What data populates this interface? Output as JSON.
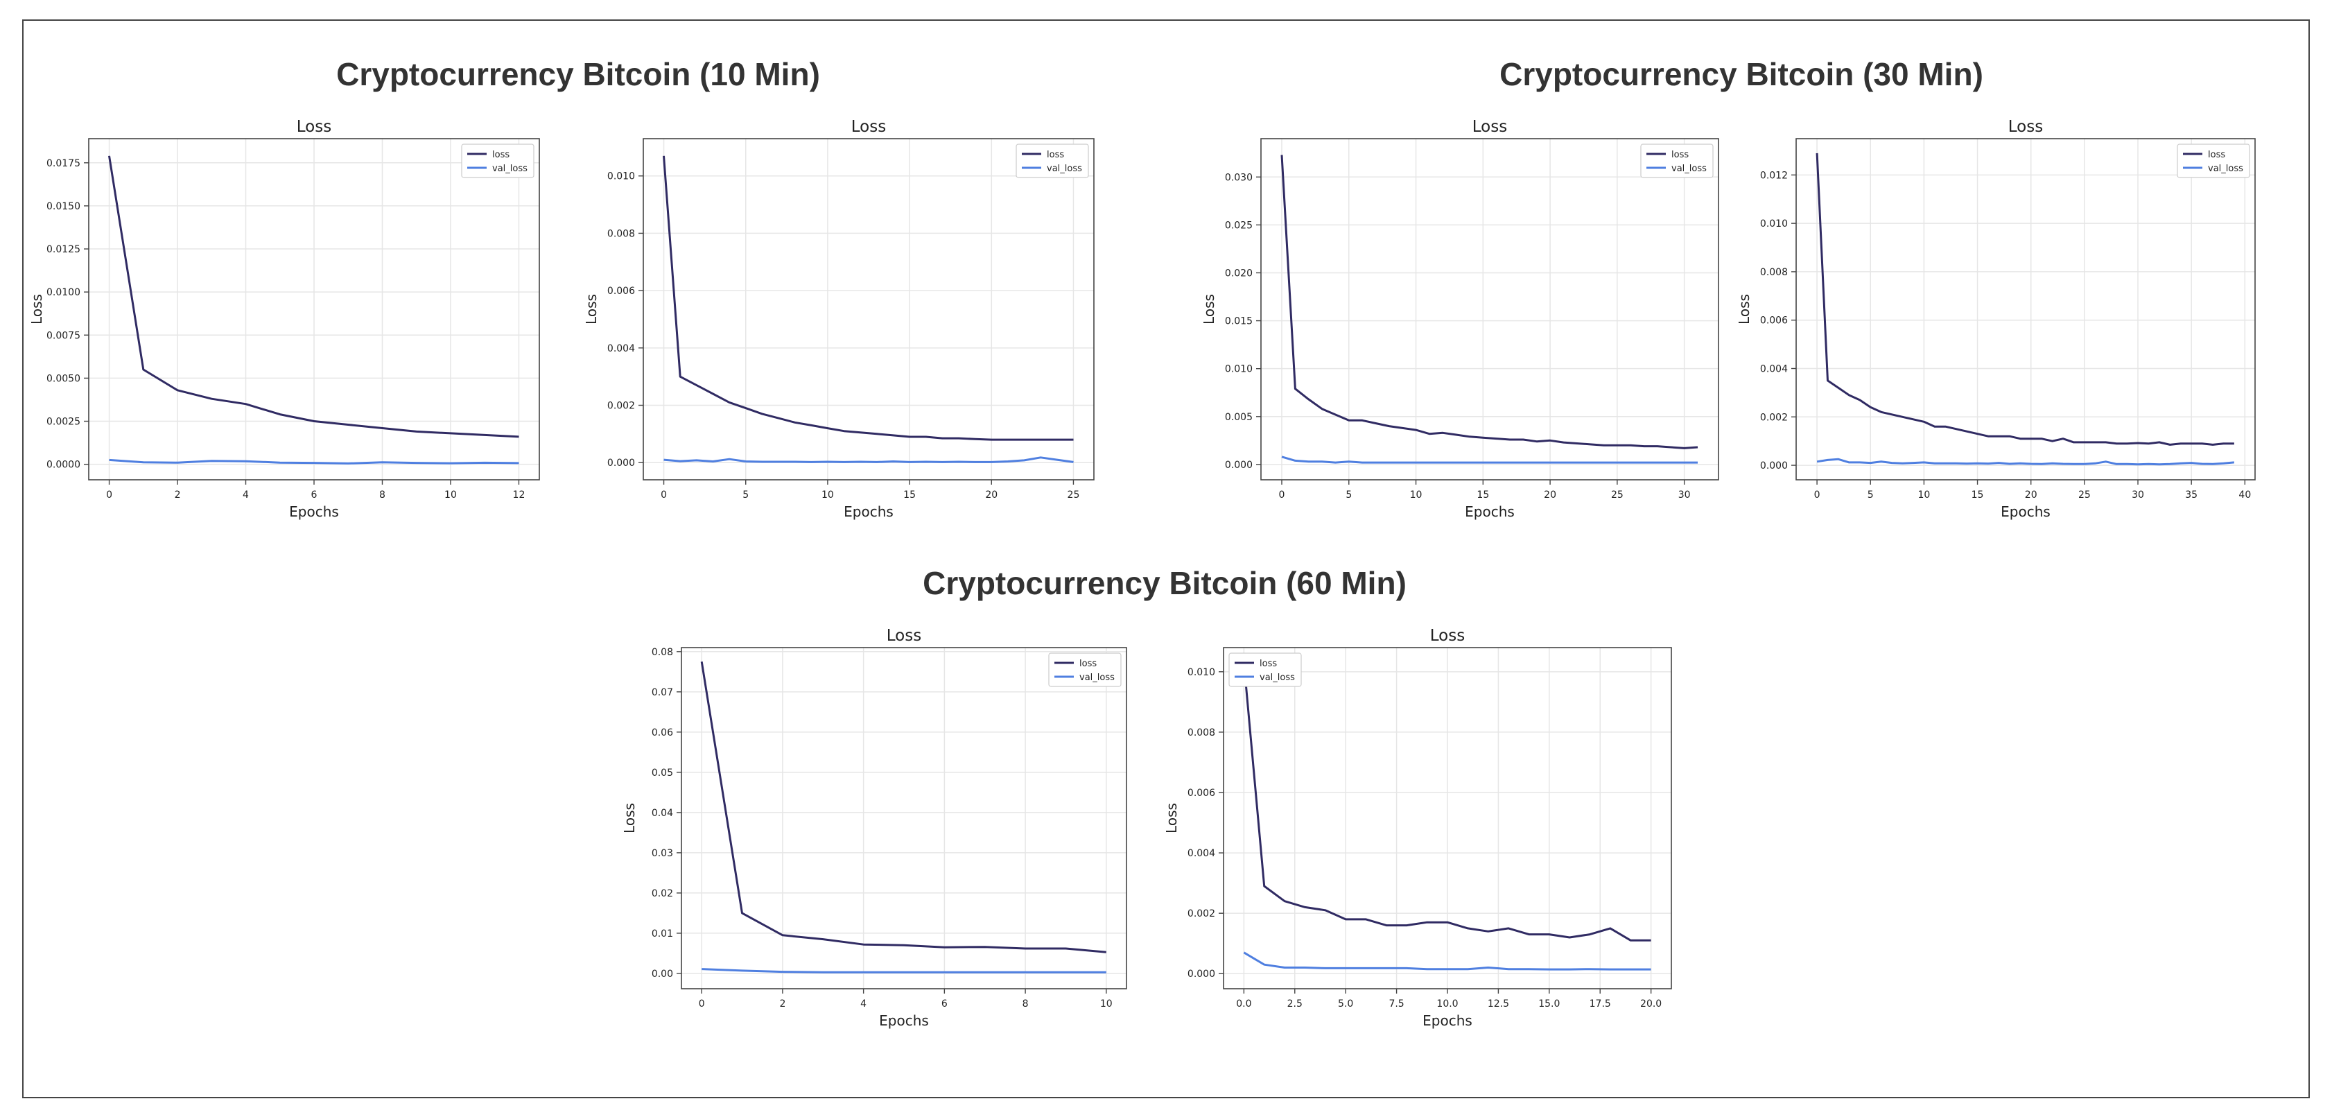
{
  "groups": [
    {
      "title": "Cryptocurrency Bitcoin (10 Min)"
    },
    {
      "title": "Cryptocurrency Bitcoin (30 Min)"
    },
    {
      "title": "Cryptocurrency Bitcoin (60 Min)"
    }
  ],
  "colors": {
    "loss": "#302b63",
    "val_loss": "#4f7fe0",
    "grid": "#e6e6e6",
    "frame": "#444444"
  },
  "chart_data": [
    {
      "type": "line",
      "group": 0,
      "title": "Loss",
      "xlabel": "Epochs",
      "ylabel": "Loss",
      "legend_position": "top-right",
      "grid": true,
      "xlim": [
        -0.6,
        12.6
      ],
      "ylim": [
        -0.0009,
        0.0189
      ],
      "xticks": [
        0,
        2,
        4,
        6,
        8,
        10,
        12
      ],
      "xtick_labels": [
        "0",
        "2",
        "4",
        "6",
        "8",
        "10",
        "12"
      ],
      "yticks": [
        0,
        0.0025,
        0.005,
        0.0075,
        0.01,
        0.0125,
        0.015,
        0.0175
      ],
      "ytick_labels": [
        "0.0000",
        "0.0025",
        "0.0050",
        "0.0075",
        "0.0100",
        "0.0125",
        "0.0150",
        "0.0175"
      ],
      "series": [
        {
          "name": "loss",
          "x": [
            0,
            1,
            2,
            3,
            4,
            5,
            6,
            7,
            8,
            9,
            10,
            11,
            12
          ],
          "values": [
            0.0179,
            0.0055,
            0.0043,
            0.0038,
            0.0035,
            0.0029,
            0.0025,
            0.0023,
            0.0021,
            0.0019,
            0.0018,
            0.0017,
            0.0016
          ]
        },
        {
          "name": "val_loss",
          "x": [
            0,
            1,
            2,
            3,
            4,
            5,
            6,
            7,
            8,
            9,
            10,
            11,
            12
          ],
          "values": [
            0.00025,
            0.00012,
            0.0001,
            0.0002,
            0.00018,
            0.0001,
            8e-05,
            5e-05,
            0.00012,
            8e-05,
            6e-05,
            9e-05,
            7e-05
          ]
        }
      ]
    },
    {
      "type": "line",
      "group": 0,
      "title": "Loss",
      "xlabel": "Epochs",
      "ylabel": "Loss",
      "legend_position": "top-right",
      "grid": true,
      "xlim": [
        -1.25,
        26.25
      ],
      "ylim": [
        -0.0006,
        0.0113
      ],
      "xticks": [
        0,
        5,
        10,
        15,
        20,
        25
      ],
      "xtick_labels": [
        "0",
        "5",
        "10",
        "15",
        "20",
        "25"
      ],
      "yticks": [
        0,
        0.002,
        0.004,
        0.006,
        0.008,
        0.01
      ],
      "ytick_labels": [
        "0.000",
        "0.002",
        "0.004",
        "0.006",
        "0.008",
        "0.010"
      ],
      "series": [
        {
          "name": "loss",
          "x": [
            0,
            1,
            2,
            3,
            4,
            5,
            6,
            7,
            8,
            9,
            10,
            11,
            12,
            13,
            14,
            15,
            16,
            17,
            18,
            19,
            20,
            21,
            22,
            23,
            24,
            25
          ],
          "values": [
            0.0107,
            0.003,
            0.0027,
            0.0024,
            0.0021,
            0.0019,
            0.0017,
            0.00155,
            0.0014,
            0.0013,
            0.0012,
            0.0011,
            0.00105,
            0.001,
            0.00095,
            0.0009,
            0.0009,
            0.00085,
            0.00085,
            0.00082,
            0.0008,
            0.0008,
            0.0008,
            0.0008,
            0.0008,
            0.0008
          ]
        },
        {
          "name": "val_loss",
          "x": [
            0,
            1,
            2,
            3,
            4,
            5,
            6,
            7,
            8,
            9,
            10,
            11,
            12,
            13,
            14,
            15,
            16,
            17,
            18,
            19,
            20,
            21,
            22,
            23,
            24,
            25
          ],
          "values": [
            0.0001,
            5e-05,
            8e-05,
            4e-05,
            0.00012,
            4e-05,
            3e-05,
            3e-05,
            3e-05,
            2e-05,
            3e-05,
            2e-05,
            3e-05,
            2e-05,
            4e-05,
            2e-05,
            3e-05,
            2e-05,
            3e-05,
            2e-05,
            2e-05,
            4e-05,
            8e-05,
            0.00018,
            0.0001,
            2e-05
          ]
        }
      ]
    },
    {
      "type": "line",
      "group": 1,
      "title": "Loss",
      "xlabel": "Epochs",
      "ylabel": "Loss",
      "legend_position": "top-right",
      "grid": true,
      "xlim": [
        -1.55,
        32.55
      ],
      "ylim": [
        -0.0016,
        0.034
      ],
      "xticks": [
        0,
        5,
        10,
        15,
        20,
        25,
        30
      ],
      "xtick_labels": [
        "0",
        "5",
        "10",
        "15",
        "20",
        "25",
        "30"
      ],
      "yticks": [
        0,
        0.005,
        0.01,
        0.015,
        0.02,
        0.025,
        0.03
      ],
      "ytick_labels": [
        "0.000",
        "0.005",
        "0.010",
        "0.015",
        "0.020",
        "0.025",
        "0.030"
      ],
      "series": [
        {
          "name": "loss",
          "x": [
            0,
            1,
            2,
            3,
            4,
            5,
            6,
            7,
            8,
            9,
            10,
            11,
            12,
            13,
            14,
            15,
            16,
            17,
            18,
            19,
            20,
            21,
            22,
            23,
            24,
            25,
            26,
            27,
            28,
            29,
            30,
            31
          ],
          "values": [
            0.0323,
            0.0079,
            0.0068,
            0.0058,
            0.0052,
            0.0046,
            0.0046,
            0.0043,
            0.004,
            0.0038,
            0.0036,
            0.0032,
            0.0033,
            0.0031,
            0.0029,
            0.0028,
            0.0027,
            0.0026,
            0.0026,
            0.0024,
            0.0025,
            0.0023,
            0.0022,
            0.0021,
            0.002,
            0.002,
            0.002,
            0.0019,
            0.0019,
            0.0018,
            0.0017,
            0.0018
          ]
        },
        {
          "name": "val_loss",
          "x": [
            0,
            1,
            2,
            3,
            4,
            5,
            6,
            7,
            8,
            9,
            10,
            11,
            12,
            13,
            14,
            15,
            16,
            17,
            18,
            19,
            20,
            21,
            22,
            23,
            24,
            25,
            26,
            27,
            28,
            29,
            30,
            31
          ],
          "values": [
            0.0008,
            0.0004,
            0.0003,
            0.0003,
            0.0002,
            0.0003,
            0.0002,
            0.0002,
            0.0002,
            0.0002,
            0.0002,
            0.0002,
            0.0002,
            0.0002,
            0.0002,
            0.0002,
            0.0002,
            0.0002,
            0.0002,
            0.0002,
            0.0002,
            0.0002,
            0.0002,
            0.0002,
            0.0002,
            0.0002,
            0.0002,
            0.0002,
            0.0002,
            0.0002,
            0.0002,
            0.0002
          ]
        }
      ]
    },
    {
      "type": "line",
      "group": 1,
      "title": "Loss",
      "xlabel": "Epochs",
      "ylabel": "Loss",
      "legend_position": "top-right",
      "grid": true,
      "xlim": [
        -1.95,
        40.95
      ],
      "ylim": [
        -0.0006,
        0.0135
      ],
      "xticks": [
        0,
        5,
        10,
        15,
        20,
        25,
        30,
        35,
        40
      ],
      "xtick_labels": [
        "0",
        "5",
        "10",
        "15",
        "20",
        "25",
        "30",
        "35",
        "40"
      ],
      "yticks": [
        0,
        0.002,
        0.004,
        0.006,
        0.008,
        0.01,
        0.012
      ],
      "ytick_labels": [
        "0.000",
        "0.002",
        "0.004",
        "0.006",
        "0.008",
        "0.010",
        "0.012"
      ],
      "series": [
        {
          "name": "loss",
          "x": [
            0,
            1,
            2,
            3,
            4,
            5,
            6,
            7,
            8,
            9,
            10,
            11,
            12,
            13,
            14,
            15,
            16,
            17,
            18,
            19,
            20,
            21,
            22,
            23,
            24,
            25,
            26,
            27,
            28,
            29,
            30,
            31,
            32,
            33,
            34,
            35,
            36,
            37,
            38,
            39
          ],
          "values": [
            0.0129,
            0.0035,
            0.0032,
            0.0029,
            0.0027,
            0.0024,
            0.0022,
            0.0021,
            0.002,
            0.0019,
            0.0018,
            0.0016,
            0.0016,
            0.0015,
            0.0014,
            0.0013,
            0.0012,
            0.0012,
            0.0012,
            0.0011,
            0.0011,
            0.0011,
            0.001,
            0.0011,
            0.00095,
            0.00095,
            0.00095,
            0.00095,
            0.0009,
            0.0009,
            0.00092,
            0.0009,
            0.00095,
            0.00085,
            0.0009,
            0.0009,
            0.0009,
            0.00085,
            0.0009,
            0.0009
          ]
        },
        {
          "name": "val_loss",
          "x": [
            0,
            1,
            2,
            3,
            4,
            5,
            6,
            7,
            8,
            9,
            10,
            11,
            12,
            13,
            14,
            15,
            16,
            17,
            18,
            19,
            20,
            21,
            22,
            23,
            24,
            25,
            26,
            27,
            28,
            29,
            30,
            31,
            32,
            33,
            34,
            35,
            36,
            37,
            38,
            39
          ],
          "values": [
            0.00015,
            0.00022,
            0.00025,
            0.00012,
            0.00012,
            0.0001,
            0.00015,
            0.0001,
            8e-05,
            0.0001,
            0.00012,
            8e-05,
            8e-05,
            8e-05,
            7e-05,
            8e-05,
            7e-05,
            0.0001,
            6e-05,
            8e-05,
            6e-05,
            5e-05,
            8e-05,
            6e-05,
            5e-05,
            5e-05,
            8e-05,
            0.00015,
            5e-05,
            5e-05,
            4e-05,
            5e-05,
            4e-05,
            5e-05,
            8e-05,
            0.0001,
            6e-05,
            5e-05,
            8e-05,
            0.00012
          ]
        }
      ]
    },
    {
      "type": "line",
      "group": 2,
      "title": "Loss",
      "xlabel": "Epochs",
      "ylabel": "Loss",
      "legend_position": "top-right",
      "grid": true,
      "xlim": [
        -0.5,
        10.5
      ],
      "ylim": [
        -0.0038,
        0.081
      ],
      "xticks": [
        0,
        2,
        4,
        6,
        8,
        10
      ],
      "xtick_labels": [
        "0",
        "2",
        "4",
        "6",
        "8",
        "10"
      ],
      "yticks": [
        0,
        0.01,
        0.02,
        0.03,
        0.04,
        0.05,
        0.06,
        0.07,
        0.08
      ],
      "ytick_labels": [
        "0.00",
        "0.01",
        "0.02",
        "0.03",
        "0.04",
        "0.05",
        "0.06",
        "0.07",
        "0.08"
      ],
      "series": [
        {
          "name": "loss",
          "x": [
            0,
            1,
            2,
            3,
            4,
            5,
            6,
            7,
            8,
            9,
            10
          ],
          "values": [
            0.0775,
            0.015,
            0.0095,
            0.0085,
            0.0072,
            0.007,
            0.0065,
            0.0066,
            0.0062,
            0.0062,
            0.0053
          ]
        },
        {
          "name": "val_loss",
          "x": [
            0,
            1,
            2,
            3,
            4,
            5,
            6,
            7,
            8,
            9,
            10
          ],
          "values": [
            0.0011,
            0.0007,
            0.0004,
            0.0003,
            0.0003,
            0.0003,
            0.0003,
            0.0003,
            0.0003,
            0.0003,
            0.0003
          ]
        }
      ]
    },
    {
      "type": "line",
      "group": 2,
      "title": "Loss",
      "xlabel": "Epochs",
      "ylabel": "Loss",
      "legend_position": "top-left",
      "grid": true,
      "xlim": [
        -1.0,
        21.0
      ],
      "ylim": [
        -0.0005,
        0.0108
      ],
      "xticks": [
        0,
        2.5,
        5,
        7.5,
        10,
        12.5,
        15,
        17.5,
        20
      ],
      "xtick_labels": [
        "0.0",
        "2.5",
        "5.0",
        "7.5",
        "10.0",
        "12.5",
        "15.0",
        "17.5",
        "20.0"
      ],
      "yticks": [
        0,
        0.002,
        0.004,
        0.006,
        0.008,
        0.01
      ],
      "ytick_labels": [
        "0.000",
        "0.002",
        "0.004",
        "0.006",
        "0.008",
        "0.010"
      ],
      "series": [
        {
          "name": "loss",
          "x": [
            0,
            1,
            2,
            3,
            4,
            5,
            6,
            7,
            8,
            9,
            10,
            11,
            12,
            13,
            14,
            15,
            16,
            17,
            18,
            19,
            20
          ],
          "values": [
            0.0103,
            0.0029,
            0.0024,
            0.0022,
            0.0021,
            0.0018,
            0.0018,
            0.0016,
            0.0016,
            0.0017,
            0.0017,
            0.0015,
            0.0014,
            0.0015,
            0.0013,
            0.0013,
            0.0012,
            0.0013,
            0.0015,
            0.0011,
            0.0011
          ]
        },
        {
          "name": "val_loss",
          "x": [
            0,
            1,
            2,
            3,
            4,
            5,
            6,
            7,
            8,
            9,
            10,
            11,
            12,
            13,
            14,
            15,
            16,
            17,
            18,
            19,
            20
          ],
          "values": [
            0.0007,
            0.0003,
            0.0002,
            0.0002,
            0.00018,
            0.00018,
            0.00018,
            0.00018,
            0.00018,
            0.00015,
            0.00015,
            0.00015,
            0.0002,
            0.00015,
            0.00015,
            0.00014,
            0.00014,
            0.00015,
            0.00014,
            0.00014,
            0.00014
          ]
        }
      ]
    }
  ]
}
